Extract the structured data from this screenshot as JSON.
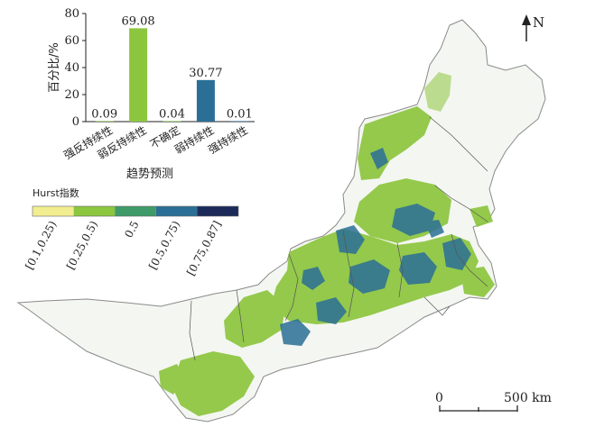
{
  "north_arrow": {
    "label": "N"
  },
  "scale_bar": {
    "start_label": "0",
    "end_label": "500 km"
  },
  "chart_data": {
    "type": "bar",
    "categories": [
      "强反持续性",
      "弱反持续性",
      "不确定",
      "弱持续性",
      "强持续性"
    ],
    "values": [
      0.09,
      69.08,
      0.04,
      30.77,
      0.01
    ],
    "value_labels": [
      "0.09",
      "69.08",
      "0.04",
      "30.77",
      "0.01"
    ],
    "bar_colors": [
      "#7fbf3f",
      "#8cc63f",
      "#7fbf3f",
      "#2b6f96",
      "#2b6f96"
    ],
    "xlabel": "趋势预测",
    "ylabel": "百分比/%",
    "ylim": [
      0,
      80
    ],
    "yticks": [
      "0",
      "20",
      "40",
      "60",
      "80"
    ],
    "grid": false
  },
  "legend": {
    "title": "Hurst指数",
    "items": [
      {
        "label": "[0.1,0.25)",
        "color": "#f2ee90"
      },
      {
        "label": "[0.25,0.5)",
        "color": "#8cc63f"
      },
      {
        "label": "0.5",
        "color": "#3f9b6a"
      },
      {
        "label": "[0.5,0.75)",
        "color": "#2b6f96"
      },
      {
        "label": "[0.75,0.87]",
        "color": "#1c2a5a"
      }
    ]
  },
  "colors": {
    "region_fill": "#f4f6f1",
    "border": "#8a8a8a",
    "green": "#8cc63f",
    "blue": "#2b6f96"
  }
}
